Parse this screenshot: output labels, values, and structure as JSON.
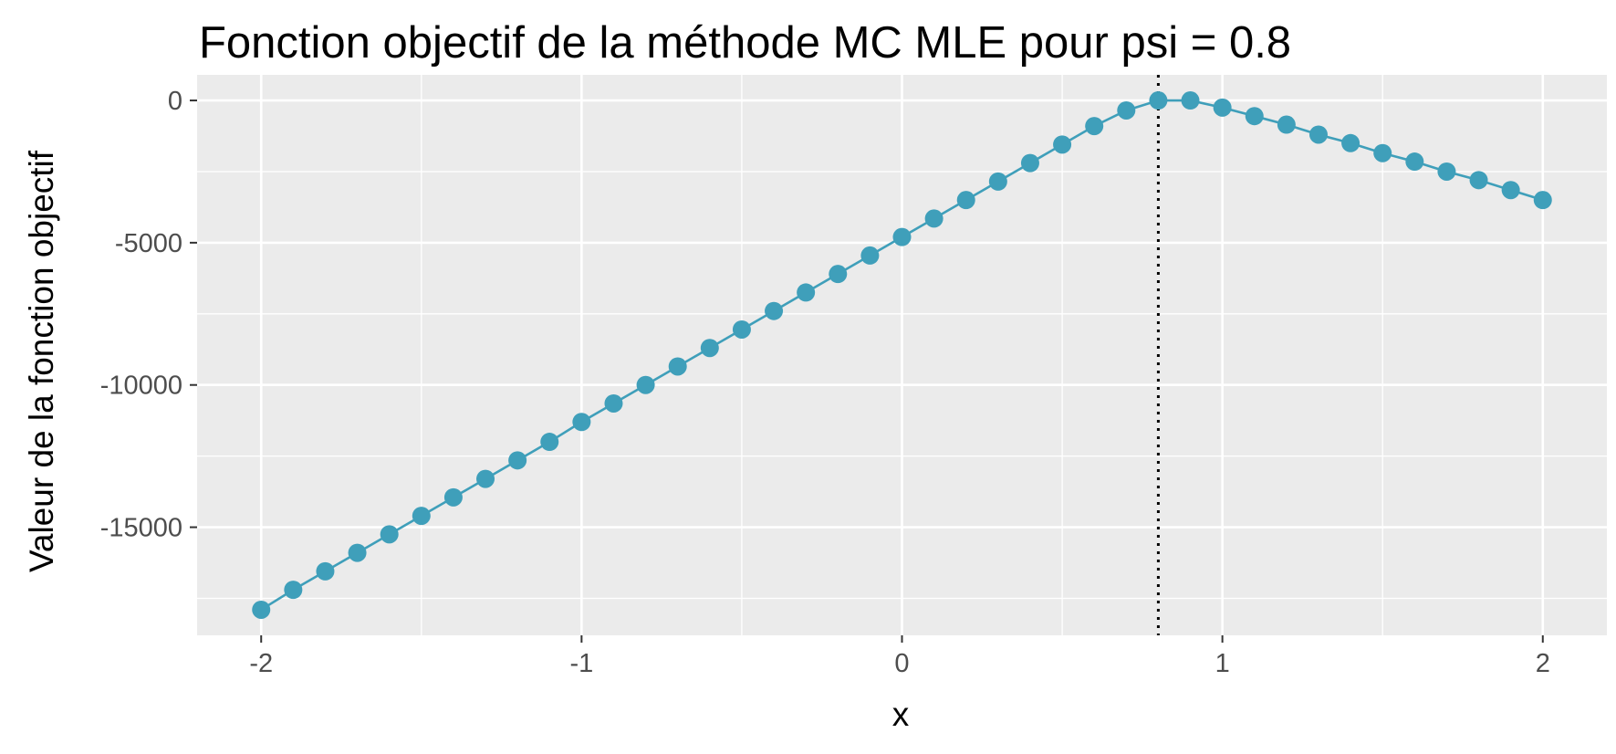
{
  "chart_data": {
    "type": "line",
    "title": "Fonction objectif de la méthode MC MLE pour psi = 0.8",
    "xlabel": "x",
    "ylabel": "Valeur de la fonction objectif",
    "xlim": [
      -2.2,
      2.2
    ],
    "ylim": [
      -18800,
      900
    ],
    "x_ticks": [
      -2,
      -1,
      0,
      1,
      2
    ],
    "x_tick_labels": [
      "-2",
      "-1",
      "0",
      "1",
      "2"
    ],
    "y_ticks": [
      0,
      -5000,
      -10000,
      -15000
    ],
    "y_tick_labels": [
      "0",
      "-5000",
      "-10000",
      "-15000"
    ],
    "grid": true,
    "panel_background": "#ebebeb",
    "series_color": "#3f9fba",
    "vline": {
      "x": 0.8,
      "style": "dotted",
      "color": "#000000"
    },
    "series": [
      {
        "x": [
          -2.0,
          -1.9,
          -1.8,
          -1.7,
          -1.6,
          -1.5,
          -1.4,
          -1.3,
          -1.2,
          -1.1,
          -1.0,
          -0.9,
          -0.8,
          -0.7,
          -0.6,
          -0.5,
          -0.4,
          -0.3,
          -0.2,
          -0.1,
          0.0,
          0.1,
          0.2,
          0.3,
          0.4,
          0.5,
          0.6,
          0.7,
          0.8,
          0.9,
          1.0,
          1.1,
          1.2,
          1.3,
          1.4,
          1.5,
          1.6,
          1.7,
          1.8,
          1.9,
          2.0
        ],
        "y": [
          -17900,
          -17200,
          -16550,
          -15900,
          -15250,
          -14600,
          -13950,
          -13300,
          -12650,
          -12000,
          -11300,
          -10650,
          -10000,
          -9350,
          -8700,
          -8050,
          -7400,
          -6750,
          -6100,
          -5450,
          -4800,
          -4150,
          -3500,
          -2850,
          -2200,
          -1550,
          -900,
          -350,
          0,
          0,
          -250,
          -550,
          -850,
          -1200,
          -1500,
          -1850,
          -2150,
          -2500,
          -2800,
          -3150,
          -3500
        ]
      }
    ]
  }
}
